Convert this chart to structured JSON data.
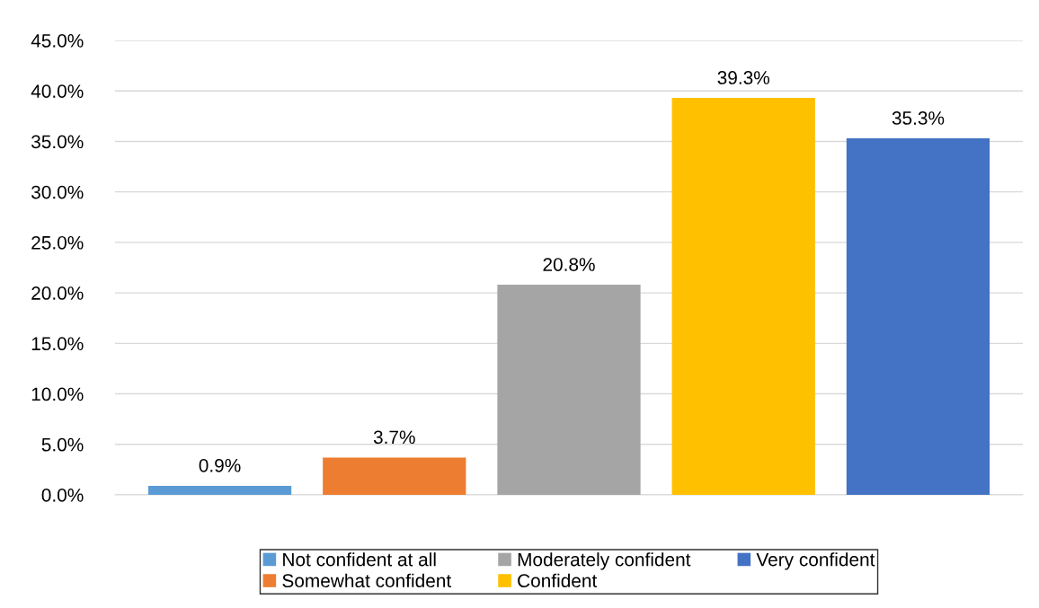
{
  "chart_data": {
    "type": "bar",
    "categories": [
      null,
      null,
      null,
      null,
      null
    ],
    "series": [
      {
        "name": "Not confident at all",
        "color": "#5b9bd5",
        "values": [
          0.9,
          null,
          null,
          null,
          null
        ],
        "value_labels": [
          "0.9%",
          null,
          null,
          null,
          null
        ]
      },
      {
        "name": "Somewhat confident",
        "color": "#ed7d31",
        "values": [
          null,
          3.7,
          null,
          null,
          null
        ],
        "value_labels": [
          null,
          "3.7%",
          null,
          null,
          null
        ]
      },
      {
        "name": "Moderately confident",
        "color": "#a5a5a5",
        "values": [
          null,
          null,
          20.8,
          null,
          null
        ],
        "value_labels": [
          null,
          null,
          "20.8%",
          null,
          null
        ]
      },
      {
        "name": "Confident",
        "color": "#ffc000",
        "values": [
          null,
          null,
          null,
          39.3,
          null
        ],
        "value_labels": [
          null,
          null,
          null,
          "39.3%",
          null
        ]
      },
      {
        "name": "Very confident",
        "color": "#4472c4",
        "values": [
          null,
          null,
          null,
          null,
          35.3
        ],
        "value_labels": [
          null,
          null,
          null,
          null,
          "35.3%"
        ]
      }
    ],
    "ylim": [
      0,
      45
    ],
    "yticks": [
      {
        "value": 0,
        "label": "0.0%"
      },
      {
        "value": 5,
        "label": "5.0%"
      },
      {
        "value": 10,
        "label": "10.0%"
      },
      {
        "value": 15,
        "label": "15.0%"
      },
      {
        "value": 20,
        "label": "20.0%"
      },
      {
        "value": 25,
        "label": "25.0%"
      },
      {
        "value": 30,
        "label": "30.0%"
      },
      {
        "value": 35,
        "label": "35.0%"
      },
      {
        "value": 40,
        "label": "40.0%"
      },
      {
        "value": 45,
        "label": "45.0%"
      }
    ],
    "grid": "y",
    "legend": "bottom",
    "tick_labels": "y"
  }
}
